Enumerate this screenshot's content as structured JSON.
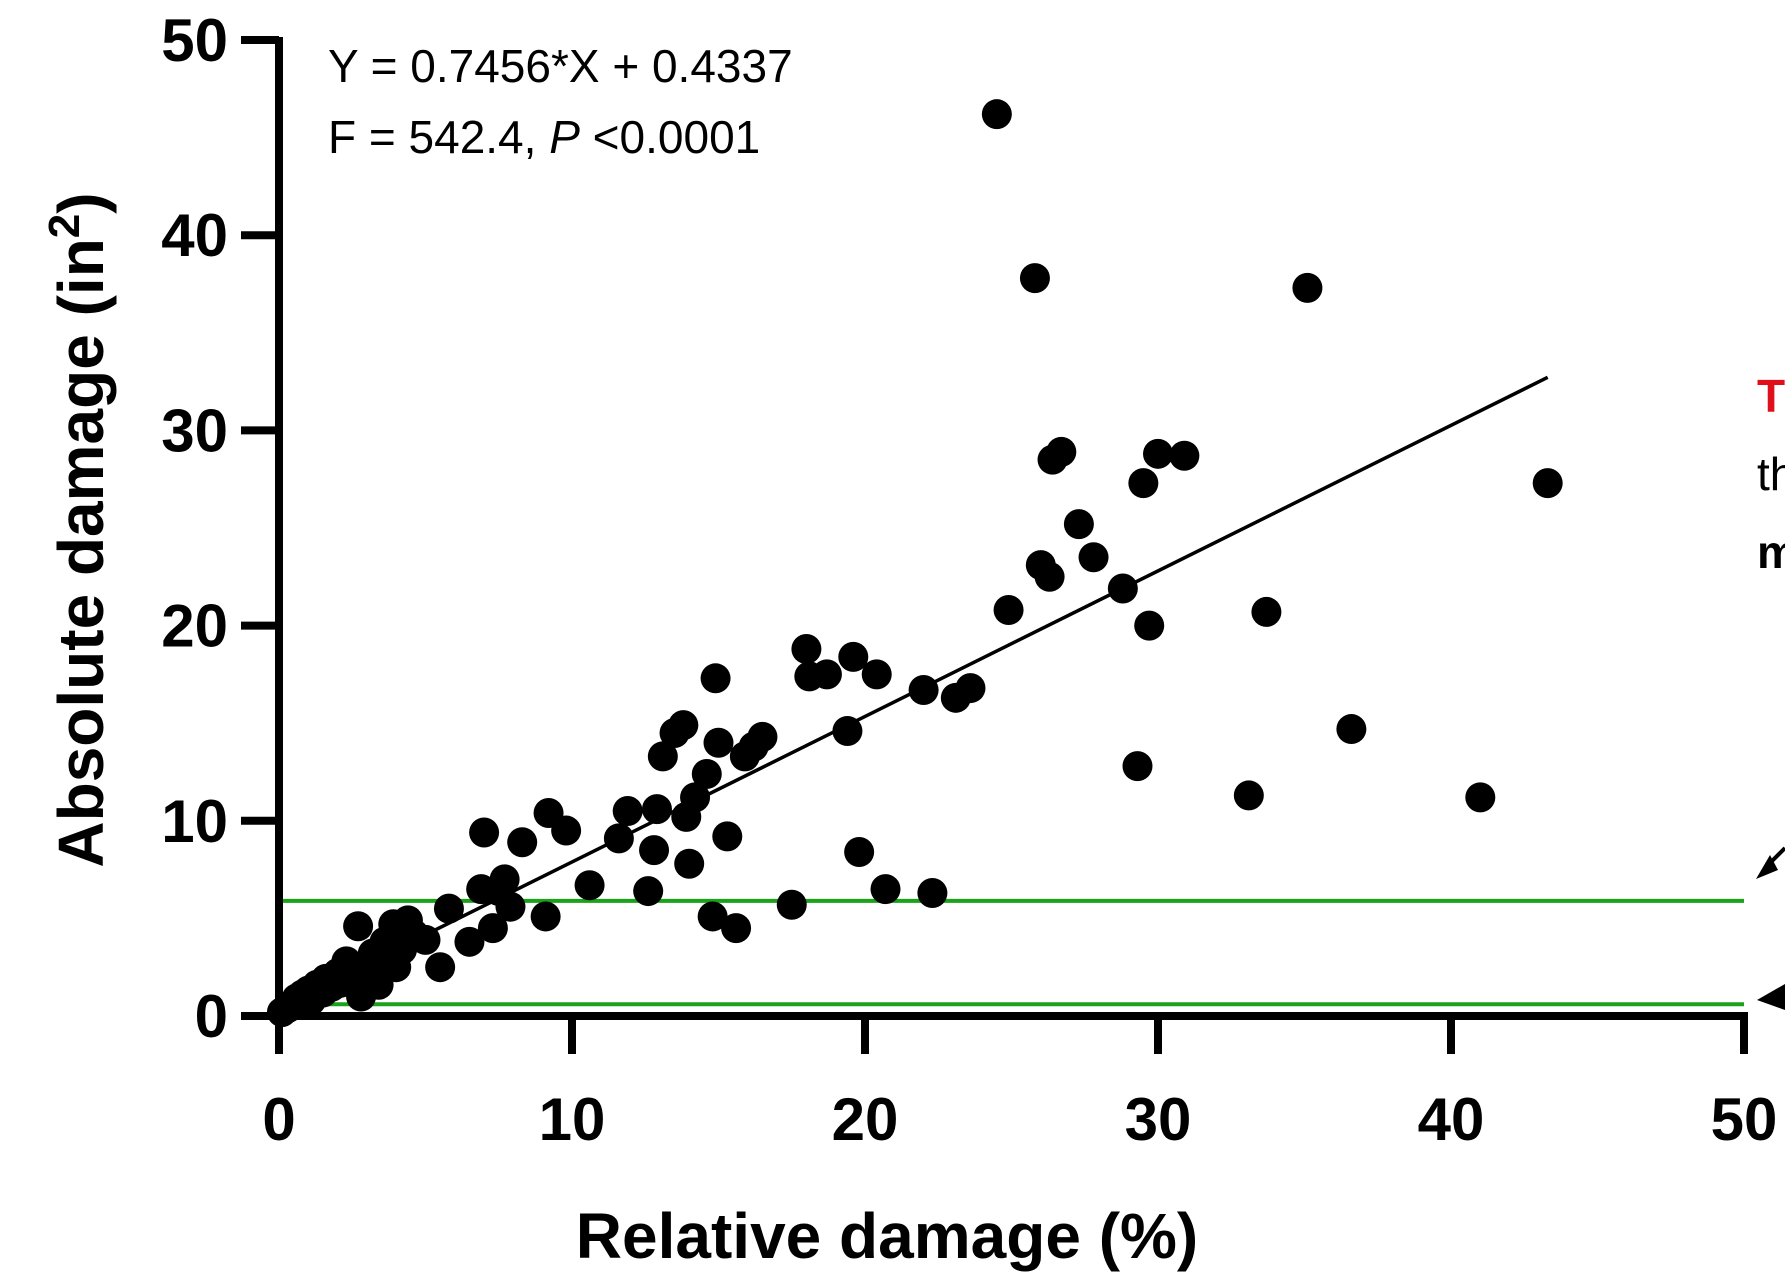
{
  "chart_data": {
    "type": "scatter",
    "xlabel": "Relative damage (%)",
    "ylabel_main": "Absolute damage (in",
    "ylabel_sup": "2",
    "ylabel_close": ")",
    "xlim": [
      0,
      50
    ],
    "ylim": [
      0,
      50
    ],
    "xticks": [
      "0",
      "10",
      "20",
      "30",
      "40",
      "50"
    ],
    "yticks": [
      "0",
      "10",
      "20",
      "30",
      "40",
      "50"
    ],
    "grid": false,
    "annotation": {
      "line1": "Y = 0.7456*X + 0.4337",
      "line2_prefix": "F = 542.4, ",
      "line2_italic": "P",
      "line2_suffix": " <0.0001"
    },
    "fit": {
      "slope": 0.7456,
      "intercept": 0.4337,
      "x_range": [
        0,
        43.3
      ]
    },
    "hlines": [
      {
        "y": 5.9,
        "color": "#1aa31a"
      },
      {
        "y": 0.6,
        "color": "#1aa31a"
      }
    ],
    "points": [
      [
        0.1,
        0.2
      ],
      [
        0.3,
        0.4
      ],
      [
        0.5,
        0.6
      ],
      [
        0.6,
        0.9
      ],
      [
        0.8,
        1.1
      ],
      [
        1.0,
        1.3
      ],
      [
        1.1,
        0.8
      ],
      [
        1.3,
        1.6
      ],
      [
        1.5,
        1.2
      ],
      [
        1.6,
        1.9
      ],
      [
        1.8,
        1.5
      ],
      [
        2.0,
        2.2
      ],
      [
        2.1,
        1.7
      ],
      [
        2.3,
        2.8
      ],
      [
        2.5,
        2.1
      ],
      [
        2.7,
        4.6
      ],
      [
        2.8,
        1.0
      ],
      [
        3.0,
        2.4
      ],
      [
        3.2,
        3.2
      ],
      [
        3.4,
        1.6
      ],
      [
        3.5,
        2.8
      ],
      [
        3.6,
        3.8
      ],
      [
        3.9,
        4.7
      ],
      [
        4.0,
        2.5
      ],
      [
        4.2,
        3.4
      ],
      [
        4.4,
        4.9
      ],
      [
        4.6,
        4.2
      ],
      [
        5.0,
        3.9
      ],
      [
        5.5,
        2.5
      ],
      [
        5.8,
        5.5
      ],
      [
        6.5,
        3.8
      ],
      [
        6.9,
        6.5
      ],
      [
        7.0,
        9.4
      ],
      [
        7.3,
        4.5
      ],
      [
        7.5,
        6.4
      ],
      [
        7.7,
        7.0
      ],
      [
        7.9,
        5.6
      ],
      [
        8.3,
        8.9
      ],
      [
        9.1,
        5.1
      ],
      [
        9.2,
        10.4
      ],
      [
        9.8,
        9.5
      ],
      [
        10.6,
        6.7
      ],
      [
        11.6,
        9.1
      ],
      [
        11.9,
        10.5
      ],
      [
        12.6,
        6.4
      ],
      [
        12.8,
        8.5
      ],
      [
        12.9,
        10.6
      ],
      [
        13.1,
        13.3
      ],
      [
        13.5,
        14.5
      ],
      [
        13.8,
        14.9
      ],
      [
        13.9,
        10.2
      ],
      [
        14.0,
        7.8
      ],
      [
        14.2,
        11.2
      ],
      [
        14.6,
        12.4
      ],
      [
        14.8,
        5.1
      ],
      [
        14.9,
        17.3
      ],
      [
        15.0,
        14.0
      ],
      [
        15.3,
        9.2
      ],
      [
        15.6,
        4.5
      ],
      [
        15.9,
        13.3
      ],
      [
        16.2,
        13.8
      ],
      [
        16.5,
        14.3
      ],
      [
        17.5,
        5.7
      ],
      [
        18.0,
        18.8
      ],
      [
        18.1,
        17.4
      ],
      [
        18.7,
        17.5
      ],
      [
        19.4,
        14.6
      ],
      [
        19.6,
        18.4
      ],
      [
        19.8,
        8.4
      ],
      [
        20.4,
        17.5
      ],
      [
        20.7,
        6.5
      ],
      [
        22.0,
        16.7
      ],
      [
        22.3,
        6.3
      ],
      [
        23.1,
        16.3
      ],
      [
        23.6,
        16.8
      ],
      [
        24.5,
        46.2
      ],
      [
        24.9,
        20.8
      ],
      [
        25.8,
        37.8
      ],
      [
        26.0,
        23.1
      ],
      [
        26.3,
        22.5
      ],
      [
        26.4,
        28.5
      ],
      [
        26.7,
        28.9
      ],
      [
        27.3,
        25.2
      ],
      [
        27.8,
        23.5
      ],
      [
        28.8,
        21.9
      ],
      [
        29.3,
        12.8
      ],
      [
        29.5,
        27.3
      ],
      [
        29.7,
        20.0
      ],
      [
        30.0,
        28.8
      ],
      [
        30.9,
        28.7
      ],
      [
        33.1,
        11.3
      ],
      [
        33.7,
        20.7
      ],
      [
        35.1,
        37.3
      ],
      [
        36.6,
        14.7
      ],
      [
        41.0,
        11.2
      ],
      [
        43.3,
        27.3
      ]
    ]
  },
  "side_text": {
    "line1": "T",
    "line2": "th",
    "line3": "m"
  }
}
